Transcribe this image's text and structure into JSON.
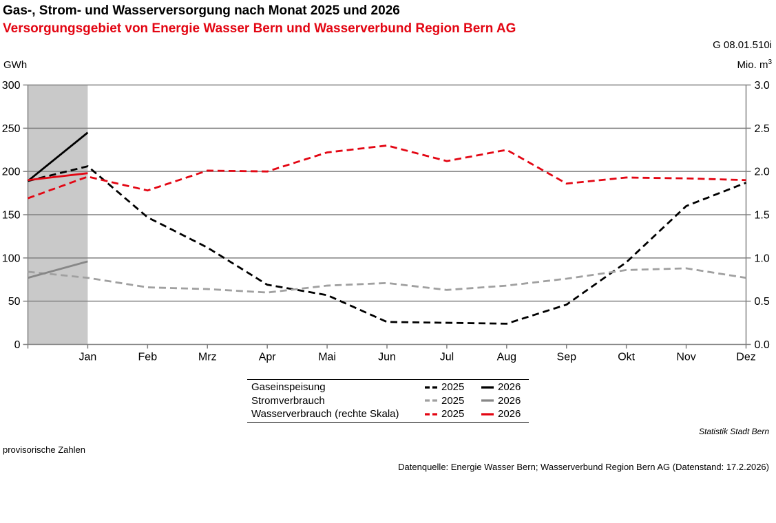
{
  "header": {
    "title": "Gas-, Strom- und Wasserversorgung nach Monat 2025 und 2026",
    "subtitle": "Versorgungsgebiet von Energie Wasser Bern und Wasserverbund Region Bern AG",
    "subtitle_color": "#e30613",
    "ref_code": "G 08.01.510i",
    "unit_left": "GWh",
    "unit_right_base": "Mio. m",
    "unit_right_sup": "3"
  },
  "legend": {
    "col_2025": "2025",
    "col_2026": "2026",
    "rows": [
      {
        "label": "Gaseinspeisung",
        "color_2025": "#000000",
        "color_2026": "#000000"
      },
      {
        "label": "Stromverbrauch",
        "color_2025": "#a0a0a0",
        "color_2026": "#878787"
      },
      {
        "label": "Wasserverbrauch (rechte Skala)",
        "color_2025": "#e30613",
        "color_2026": "#e30613"
      }
    ]
  },
  "footer": {
    "attribution": "Statistik Stadt Bern",
    "note": "provisorische Zahlen",
    "source": "Datenquelle: Energie Wasser Bern; Wasserverbund Region Bern AG (Datenstand: 17.2.2026)"
  },
  "chart_data": {
    "type": "line",
    "title": "Gas-, Strom- und Wasserversorgung nach Monat 2025 und 2026",
    "x_tick_labels": [
      "Jan",
      "Feb",
      "Mrz",
      "Apr",
      "Mai",
      "Jun",
      "Jul",
      "Aug",
      "Sep",
      "Okt",
      "Nov",
      "Dez"
    ],
    "x_start_note": "each series has one extra unlabeled data point on the left axis, one month before Jan (previous December)",
    "left_axis": {
      "title": "GWh",
      "min": 0,
      "max": 300,
      "tick_step": 50
    },
    "right_axis": {
      "title": "Mio. m3",
      "min": 0.0,
      "max": 3.0,
      "tick_step": 0.5
    },
    "grid": true,
    "highlight_band": {
      "from_index": 0,
      "to_index": 1,
      "color": "#c9c9c9"
    },
    "grid_color": "#808080",
    "series": [
      {
        "name": "Gaseinspeisung 2025",
        "axis": "left",
        "style": "dashed",
        "color": "#000000",
        "values": [
          189,
          206,
          147,
          112,
          69,
          57,
          26,
          25,
          24,
          46,
          95,
          160,
          187
        ]
      },
      {
        "name": "Gaseinspeisung 2026",
        "axis": "left",
        "style": "solid",
        "color": "#000000",
        "values": [
          189,
          245
        ]
      },
      {
        "name": "Stromverbrauch 2025",
        "axis": "left",
        "style": "dashed",
        "color": "#a0a0a0",
        "values": [
          84,
          77,
          66,
          64,
          60,
          68,
          71,
          63,
          68,
          76,
          86,
          88,
          77
        ]
      },
      {
        "name": "Stromverbrauch 2026",
        "axis": "left",
        "style": "solid",
        "color": "#878787",
        "values": [
          77,
          96
        ]
      },
      {
        "name": "Wasserverbrauch 2025",
        "axis": "right",
        "style": "dashed",
        "color": "#e30613",
        "values": [
          1.69,
          1.94,
          1.78,
          2.01,
          2.0,
          2.22,
          2.3,
          2.12,
          2.25,
          1.86,
          1.93,
          1.92,
          1.9
        ]
      },
      {
        "name": "Wasserverbrauch 2026",
        "axis": "right",
        "style": "solid",
        "color": "#e30613",
        "values": [
          1.9,
          1.98
        ]
      }
    ]
  }
}
